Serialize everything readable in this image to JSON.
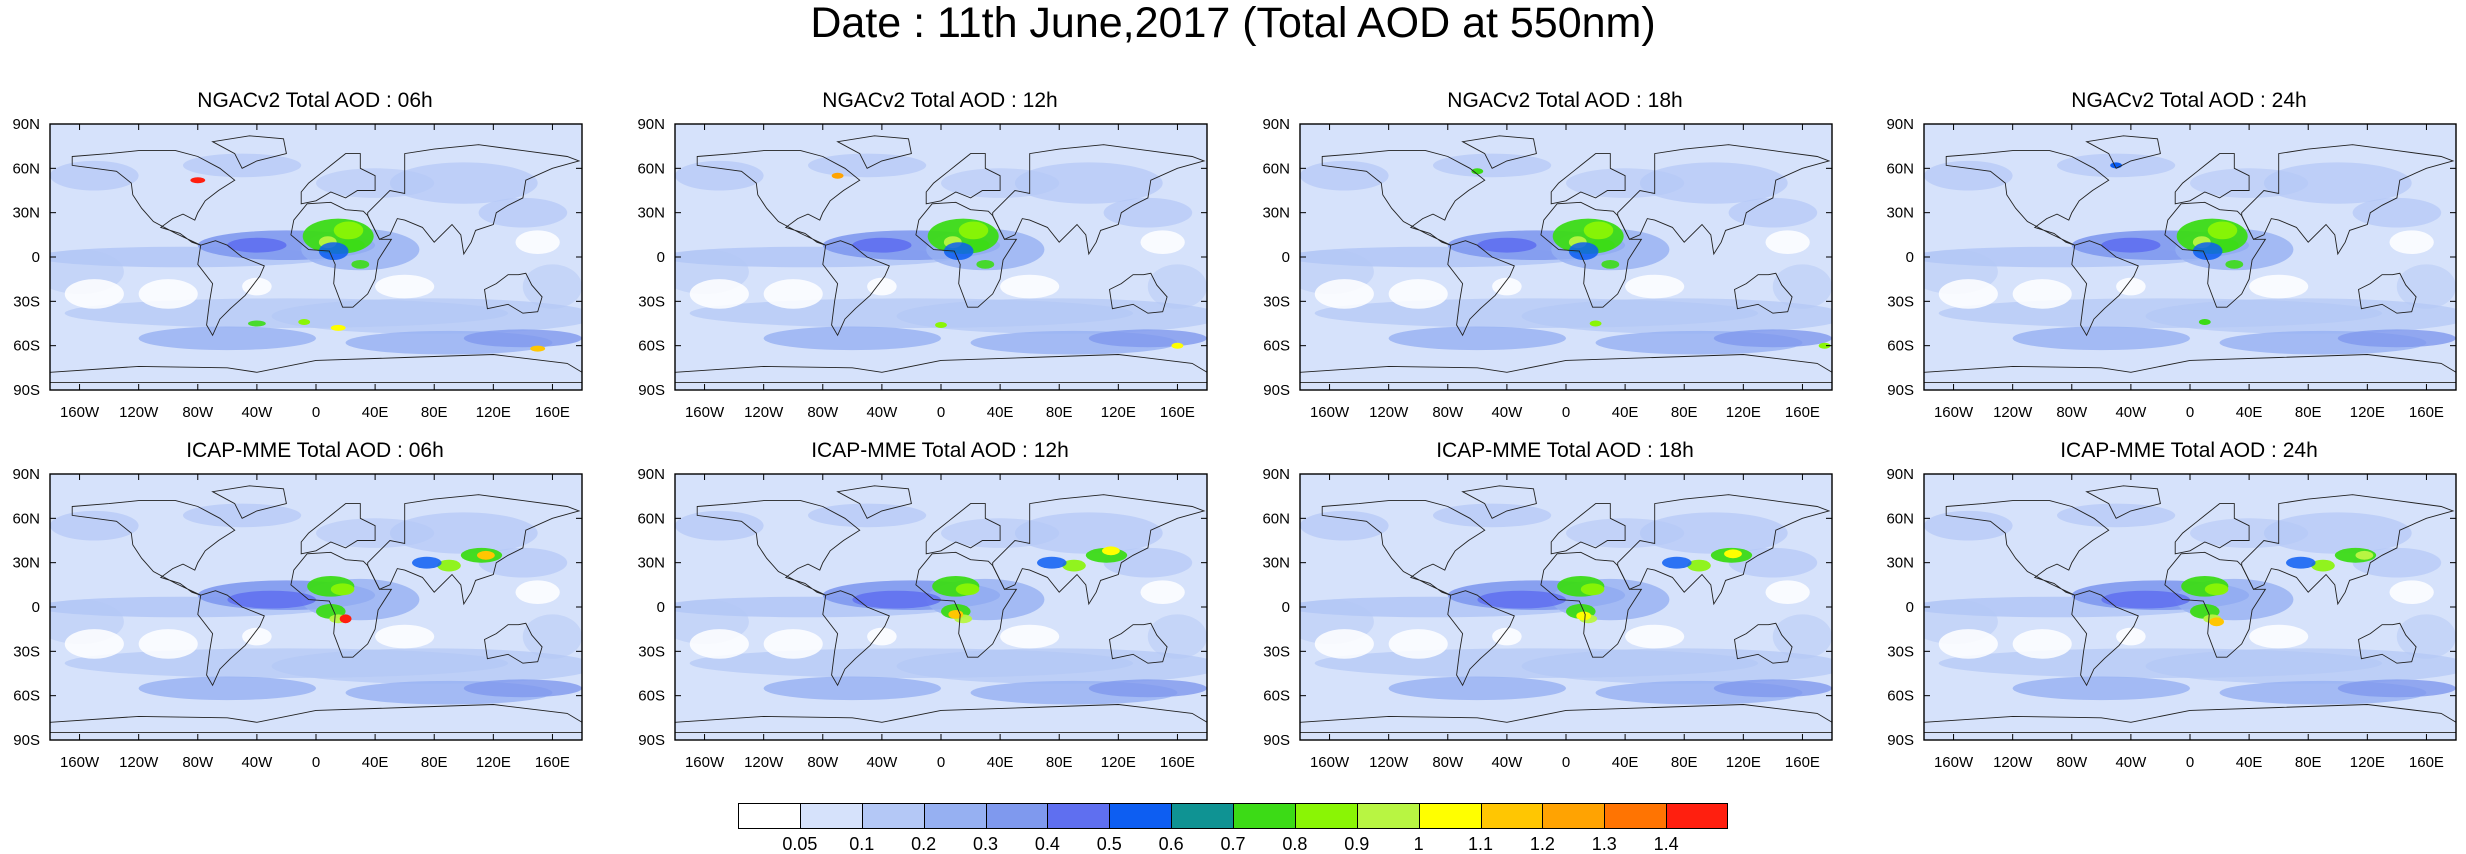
{
  "title": "Date : 11th June,2017 (Total AOD at 550nm)",
  "lat_labels": [
    "90N",
    "60N",
    "30N",
    "0",
    "30S",
    "60S",
    "90S"
  ],
  "lon_labels": [
    "160W",
    "120W",
    "80W",
    "40W",
    "0",
    "40E",
    "80E",
    "120E",
    "160E"
  ],
  "panels": [
    {
      "title": "NGACv2 Total AOD : 06h"
    },
    {
      "title": "NGACv2 Total AOD : 12h"
    },
    {
      "title": "NGACv2 Total AOD : 18h"
    },
    {
      "title": "NGACv2 Total AOD : 24h"
    },
    {
      "title": "ICAP-MME Total AOD : 06h"
    },
    {
      "title": "ICAP-MME Total AOD : 12h"
    },
    {
      "title": "ICAP-MME Total AOD : 18h"
    },
    {
      "title": "ICAP-MME Total AOD : 24h"
    }
  ],
  "colorbar": {
    "labels": [
      "0.05",
      "0.1",
      "0.2",
      "0.3",
      "0.4",
      "0.5",
      "0.6",
      "0.7",
      "0.8",
      "0.9",
      "1",
      "1.1",
      "1.2",
      "1.3",
      "1.4"
    ],
    "colors": [
      "#ffffff",
      "#d6e2fb",
      "#b4c8f6",
      "#96b0f2",
      "#7f99ee",
      "#5f6ff0",
      "#0d5ef2",
      "#0f9393",
      "#3cdb16",
      "#8af505",
      "#b8f542",
      "#ffff00",
      "#ffc602",
      "#ffa302",
      "#ff7402",
      "#ff1f0f"
    ]
  }
}
